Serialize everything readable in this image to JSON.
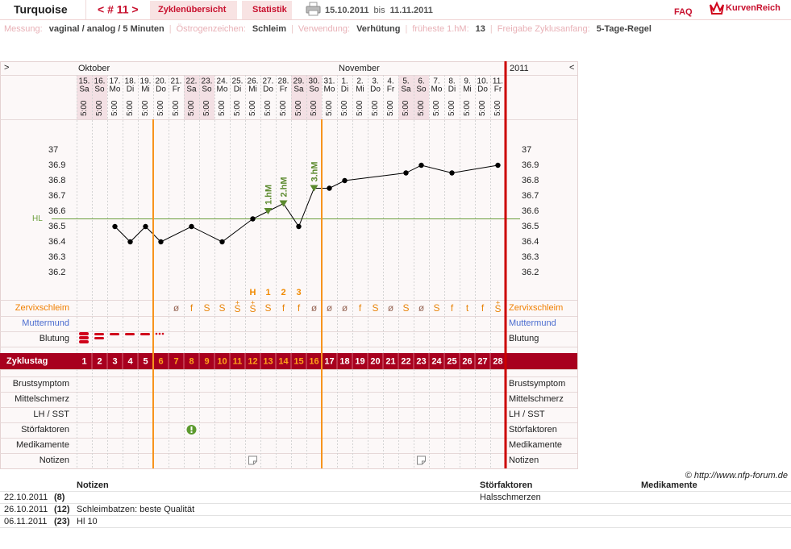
{
  "header": {
    "title": "Turquoise",
    "cycle_nav": "< # 11 >",
    "tabs": [
      "Zyklenübersicht",
      "Statistik"
    ],
    "date_from": "15.10.2011",
    "date_sep": "bis",
    "date_to": "11.11.2011",
    "faq": "FAQ",
    "brand": "KurvenReich"
  },
  "info": {
    "separator": "|",
    "items": [
      {
        "label": "Messung:",
        "value": "vaginal / analog / 5 Minuten"
      },
      {
        "label": "Östrogenzeichen:",
        "value": "Schleim"
      },
      {
        "label": "Verwendung:",
        "value": "Verhütung"
      },
      {
        "label": "früheste 1.hM:",
        "value": "13"
      },
      {
        "label": "Freigabe Zyklusanfang:",
        "value": "5-Tage-Regel"
      }
    ]
  },
  "calendar": {
    "nav_left": ">",
    "nav_right": "<",
    "year": "2011",
    "months": [
      "Oktober",
      "November"
    ],
    "dates": [
      "15.",
      "16.",
      "17.",
      "18.",
      "19.",
      "20.",
      "21.",
      "22.",
      "23.",
      "24.",
      "25.",
      "26.",
      "27.",
      "28.",
      "29.",
      "30.",
      "31.",
      "1.",
      "2.",
      "3.",
      "4.",
      "5.",
      "6.",
      "7.",
      "8.",
      "9.",
      "10.",
      "11."
    ],
    "weekdays": [
      "Sa",
      "So",
      "Mo",
      "Di",
      "Mi",
      "Do",
      "Fr",
      "Sa",
      "So",
      "Mo",
      "Di",
      "Mi",
      "Do",
      "Fr",
      "Sa",
      "So",
      "Mo",
      "Di",
      "Mi",
      "Do",
      "Fr",
      "Sa",
      "So",
      "Mo",
      "Di",
      "Mi",
      "Do",
      "Fr"
    ],
    "times": [
      "5:00",
      "5:00",
      "5:00",
      "5:00",
      "5:00",
      "5:00",
      "5:00",
      "5:00",
      "5:00",
      "5:00",
      "5:00",
      "5:00",
      "5:00",
      "5:00",
      "5:00",
      "5:00",
      "5:00",
      "5:00",
      "5:00",
      "5:00",
      "5:00",
      "5:00",
      "5:00",
      "5:00",
      "5:00",
      "5:00",
      "5:00",
      "5:00"
    ],
    "shaded_days": [
      1,
      2,
      8,
      9,
      15,
      16,
      22,
      23
    ]
  },
  "chart_data": {
    "type": "line",
    "x": [
      3,
      4,
      5,
      6,
      8,
      10,
      12,
      13,
      14,
      15,
      16,
      17,
      18,
      22,
      23,
      25,
      28
    ],
    "values": [
      36.5,
      36.4,
      36.5,
      36.4,
      36.5,
      36.4,
      36.55,
      36.6,
      36.65,
      36.5,
      36.75,
      36.75,
      36.8,
      36.85,
      36.9,
      36.85,
      36.9
    ],
    "color": "#000000",
    "xlim": [
      0.5,
      28.5
    ],
    "ylim": [
      36.0,
      37.2
    ],
    "yticks": [
      36.2,
      36.3,
      36.4,
      36.5,
      36.6,
      36.7,
      36.8,
      36.9,
      37
    ],
    "coverline": {
      "label": "HL",
      "value": 36.55,
      "color": "#6b9e3c"
    },
    "markers": [
      {
        "x": 13,
        "label": "1.hM"
      },
      {
        "x": 14,
        "label": "2.hM"
      },
      {
        "x": 16,
        "label": "3.hM"
      }
    ],
    "marker_color": "#5c8a2e"
  },
  "peak_labels": [
    {
      "day": 12,
      "label": "H"
    },
    {
      "day": 13,
      "label": "1"
    },
    {
      "day": 14,
      "label": "2"
    },
    {
      "day": 15,
      "label": "3"
    }
  ],
  "zervix": [
    null,
    null,
    null,
    null,
    null,
    null,
    "ø",
    "f",
    "S",
    "S",
    {
      "sign": "S",
      "top": "+"
    },
    {
      "sign": "S",
      "top": "+"
    },
    "S",
    "f",
    "f",
    "ø",
    "ø",
    "ø",
    "f",
    "S",
    "ø",
    "S",
    "ø",
    "S",
    "f",
    "t",
    "f",
    {
      "sign": "S",
      "top": "+"
    }
  ],
  "rows": [
    "Zervixschleim",
    "Muttermund",
    "Blutung",
    "Zyklustag",
    "Brustsymptom",
    "Mittelschmerz",
    "LH / SST",
    "Störfaktoren",
    "Medikamente",
    "Notizen"
  ],
  "cycle_days": [
    1,
    2,
    3,
    4,
    5,
    6,
    7,
    8,
    9,
    10,
    11,
    12,
    13,
    14,
    15,
    16,
    17,
    18,
    19,
    20,
    21,
    22,
    23,
    24,
    25,
    26,
    27,
    28
  ],
  "fertile_phase": {
    "from": 6,
    "to": 16
  },
  "copyright": "© http://www.nfp-forum.de",
  "notes_table": {
    "headers": [
      "Notizen",
      "Störfaktoren",
      "Medikamente"
    ],
    "rows": [
      {
        "date": "22.10.2011",
        "day": {
          "value": 8,
          "label": "(8)"
        },
        "notes": null,
        "disturbances": "Halsschmerzen",
        "medication": null
      },
      {
        "date": "26.10.2011",
        "day": {
          "value": 12,
          "label": "(12)"
        },
        "notes": "Schleimbatzen: beste Qualität",
        "disturbances": null,
        "medication": null
      },
      {
        "date": "06.11.2011",
        "day": {
          "value": 23,
          "label": "(23)"
        },
        "notes": "Hl 10",
        "disturbances": null,
        "medication": null
      }
    ]
  }
}
